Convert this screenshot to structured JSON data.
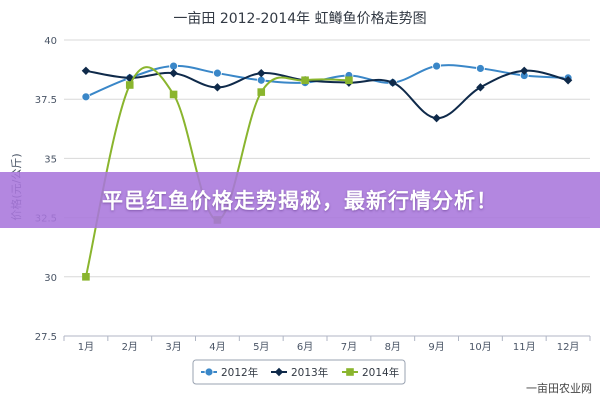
{
  "banner": {
    "text": "平邑红鱼价格走势揭秘，最新行情分析！"
  },
  "watermark": {
    "text": "一亩田农业网"
  },
  "colors": {
    "s2012": "#3a87c8",
    "s2013": "#0f2a4a",
    "s2014": "#8ab52e",
    "grid": "#d8d8d8",
    "axis": "#b0b6c4",
    "text": "#4a5566"
  },
  "chart_data": {
    "type": "line",
    "title": "一亩田 2012-2014年 虹鳟鱼价格走势图",
    "ylabel": "价格(元/公斤)",
    "xlabel": "",
    "categories": [
      "1月",
      "2月",
      "3月",
      "4月",
      "5月",
      "6月",
      "7月",
      "8月",
      "9月",
      "10月",
      "11月",
      "12月"
    ],
    "ylim": [
      27.5,
      40
    ],
    "yticks": [
      "27.5",
      "30",
      "32.5",
      "35",
      "37.5",
      "40"
    ],
    "grid": true,
    "legend_position": "bottom",
    "smooth": true,
    "series": [
      {
        "name": "2012年",
        "color_key": "s2012",
        "marker": "circle",
        "values": [
          37.6,
          38.4,
          38.9,
          38.6,
          38.3,
          38.2,
          38.5,
          38.2,
          38.9,
          38.8,
          38.5,
          38.4
        ]
      },
      {
        "name": "2013年",
        "color_key": "s2013",
        "marker": "diamond",
        "values": [
          38.7,
          38.4,
          38.6,
          38.0,
          38.6,
          38.3,
          38.2,
          38.2,
          36.7,
          38.0,
          38.7,
          38.3
        ]
      },
      {
        "name": "2014年",
        "color_key": "s2014",
        "marker": "square",
        "values": [
          30.0,
          38.1,
          37.7,
          32.4,
          37.8,
          38.3,
          38.3,
          null,
          null,
          null,
          null,
          null
        ]
      }
    ]
  }
}
